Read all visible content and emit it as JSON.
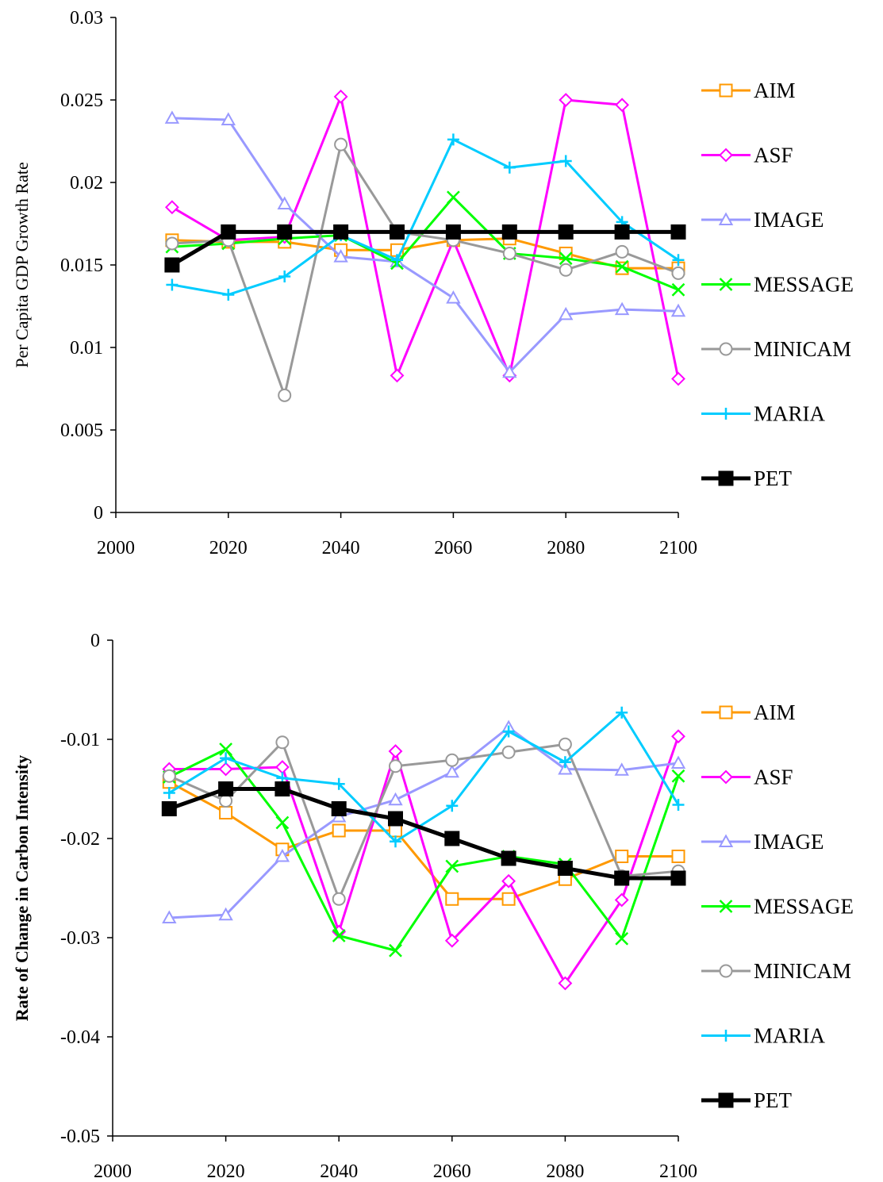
{
  "series_styles": [
    {
      "name": "AIM",
      "color": "#ff9900",
      "marker": "square-open"
    },
    {
      "name": "ASF",
      "color": "#ff00ff",
      "marker": "diamond-open"
    },
    {
      "name": "IMAGE",
      "color": "#9999ff",
      "marker": "triangle-open"
    },
    {
      "name": "MESSAGE",
      "color": "#00ff00",
      "marker": "x"
    },
    {
      "name": "MINICAM",
      "color": "#999999",
      "marker": "circle-open"
    },
    {
      "name": "MARIA",
      "color": "#00ccff",
      "marker": "plus"
    },
    {
      "name": "PET",
      "color": "#000000",
      "marker": "square-filled"
    }
  ],
  "chart_data": [
    {
      "type": "line",
      "xlabel": "",
      "ylabel": "Per Capita GDP Growth Rate",
      "xlim": [
        2000,
        2100
      ],
      "ylim": [
        0,
        0.03
      ],
      "xticks": [
        "2000",
        "2020",
        "2040",
        "2060",
        "2080",
        "2100"
      ],
      "yticks": [
        "0",
        "0.005",
        "0.01",
        "0.015",
        "0.02",
        "0.025",
        "0.03"
      ],
      "grid": false,
      "legend": "right",
      "x": [
        2010,
        2020,
        2030,
        2040,
        2050,
        2060,
        2070,
        2080,
        2090,
        2100
      ],
      "series": [
        {
          "name": "AIM",
          "values": [
            0.0165,
            0.0164,
            0.0164,
            0.0159,
            0.0159,
            0.0165,
            0.0166,
            0.0157,
            0.0148,
            0.0148
          ]
        },
        {
          "name": "ASF",
          "values": [
            0.0185,
            0.0165,
            0.0167,
            0.0252,
            0.0083,
            0.0165,
            0.0083,
            0.025,
            0.0247,
            0.0081
          ]
        },
        {
          "name": "IMAGE",
          "values": [
            0.0239,
            0.0238,
            0.0187,
            0.0155,
            0.0152,
            0.013,
            0.0085,
            0.012,
            0.0123,
            0.0122
          ]
        },
        {
          "name": "MESSAGE",
          "values": [
            0.0161,
            0.0163,
            0.0166,
            0.0168,
            0.0151,
            0.0191,
            0.0157,
            0.0154,
            0.0149,
            0.0135
          ]
        },
        {
          "name": "MINICAM",
          "values": [
            0.0163,
            0.0165,
            0.0071,
            0.0223,
            0.017,
            0.0165,
            0.0157,
            0.0147,
            0.0158,
            0.0145
          ]
        },
        {
          "name": "MARIA",
          "values": [
            0.0138,
            0.0132,
            0.0143,
            0.0168,
            0.0153,
            0.0226,
            0.0209,
            0.0213,
            0.0176,
            0.0153
          ]
        },
        {
          "name": "PET",
          "values": [
            0.015,
            0.017,
            0.017,
            0.017,
            0.017,
            0.017,
            0.017,
            0.017,
            0.017,
            0.017
          ]
        }
      ]
    },
    {
      "type": "line",
      "xlabel": "",
      "ylabel": "Rate of Change in Carbon Intensity",
      "xlim": [
        2000,
        2100
      ],
      "ylim": [
        -0.05,
        0
      ],
      "xticks": [
        "2000",
        "2020",
        "2040",
        "2060",
        "2080",
        "2100"
      ],
      "yticks": [
        "-0.05",
        "-0.04",
        "-0.03",
        "-0.02",
        "-0.01",
        "0"
      ],
      "grid": false,
      "legend": "right",
      "x": [
        2010,
        2020,
        2030,
        2040,
        2050,
        2060,
        2070,
        2080,
        2090,
        2100
      ],
      "series": [
        {
          "name": "AIM",
          "values": [
            -0.0143,
            -0.0174,
            -0.0211,
            -0.0192,
            -0.0192,
            -0.0261,
            -0.0261,
            -0.0241,
            -0.0218,
            -0.0218
          ]
        },
        {
          "name": "ASF",
          "values": [
            -0.013,
            -0.013,
            -0.0128,
            -0.0294,
            -0.0112,
            -0.0303,
            -0.0243,
            -0.0346,
            -0.0262,
            -0.0097
          ]
        },
        {
          "name": "IMAGE",
          "values": [
            -0.028,
            -0.0277,
            -0.0218,
            -0.0178,
            -0.0161,
            -0.0133,
            -0.0088,
            -0.013,
            -0.0131,
            -0.0124
          ]
        },
        {
          "name": "MESSAGE",
          "values": [
            -0.0138,
            -0.011,
            -0.0184,
            -0.0298,
            -0.0313,
            -0.0228,
            -0.0218,
            -0.0226,
            -0.0301,
            -0.0137
          ]
        },
        {
          "name": "MINICAM",
          "values": [
            -0.0137,
            -0.0162,
            -0.0103,
            -0.0261,
            -0.0127,
            -0.0121,
            -0.0113,
            -0.0105,
            -0.0238,
            -0.0233
          ]
        },
        {
          "name": "MARIA",
          "values": [
            -0.0154,
            -0.0119,
            -0.0139,
            -0.0145,
            -0.0203,
            -0.0167,
            -0.0092,
            -0.0123,
            -0.0073,
            -0.0166
          ]
        },
        {
          "name": "PET",
          "values": [
            -0.017,
            -0.015,
            -0.015,
            -0.017,
            -0.018,
            -0.02,
            -0.022,
            -0.023,
            -0.024,
            -0.024
          ]
        }
      ]
    }
  ]
}
